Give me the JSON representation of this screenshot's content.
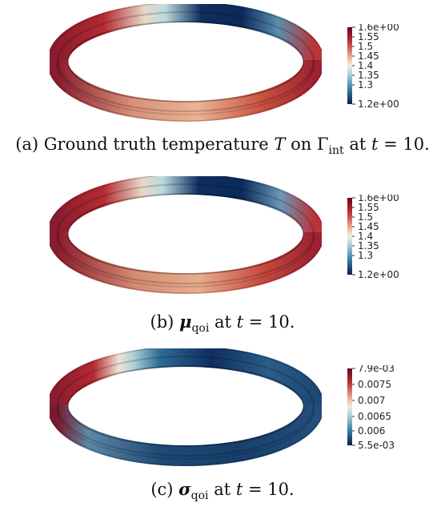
{
  "figures": [
    {
      "id": "a",
      "caption": {
        "label": "(a) Ground truth temperature",
        "var": "T",
        "on": "on",
        "gamma": "Γ",
        "gamma_sub": "int",
        "at": "at",
        "time_var": "t",
        "time_eq": "= 10."
      },
      "colorbar": {
        "ticks": [
          "1.6e+00",
          "1.55",
          "1.5",
          "1.45",
          "1.4",
          "1.35",
          "1.3",
          "1.2e+00"
        ]
      }
    },
    {
      "id": "b",
      "caption": {
        "label": "(b)",
        "symbol": "μ",
        "sub": "qoi",
        "at": "at",
        "time_var": "t",
        "time_eq": "= 10."
      },
      "colorbar": {
        "ticks": [
          "1.6e+00",
          "1.55",
          "1.5",
          "1.45",
          "1.4",
          "1.35",
          "1.3",
          "1.2e+00"
        ]
      }
    },
    {
      "id": "c",
      "caption": {
        "label": "(c)",
        "symbol": "σ",
        "sub": "qoi",
        "at": "at",
        "time_var": "t",
        "time_eq": "= 10."
      },
      "colorbar": {
        "ticks": [
          "7.9e-03",
          "0.0075",
          "0.007",
          "0.0065",
          "0.006",
          "5.5e-03"
        ]
      }
    }
  ],
  "colors": {
    "deep_red": "#67001f",
    "red": "#b2182b",
    "salmon": "#e8937a",
    "light": "#f2ece6",
    "light_blue": "#a7cfd6",
    "teal": "#3d8aa6",
    "navy": "#0b2a5a",
    "deep_navy": "#08204a"
  }
}
